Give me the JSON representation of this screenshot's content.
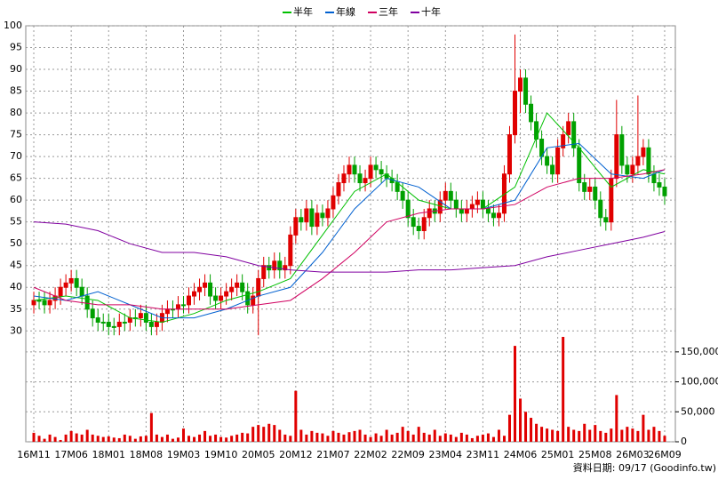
{
  "chart_data": {
    "type": "candlestick",
    "legend_position": "top",
    "grid": true,
    "up_color": "#e00000",
    "down_color": "#00a000",
    "volume_color": "#e00000",
    "xlim": [
      -1.5,
      120
    ],
    "xticks": [
      {
        "value": 0,
        "label": "16M11"
      },
      {
        "value": 7,
        "label": "17M06"
      },
      {
        "value": 14,
        "label": "18M01"
      },
      {
        "value": 21,
        "label": "18M08"
      },
      {
        "value": 28,
        "label": "19M03"
      },
      {
        "value": 35,
        "label": "19M10"
      },
      {
        "value": 42,
        "label": "20M05"
      },
      {
        "value": 49,
        "label": "20M12"
      },
      {
        "value": 56,
        "label": "21M07"
      },
      {
        "value": 63,
        "label": "22M02"
      },
      {
        "value": 70,
        "label": "22M09"
      },
      {
        "value": 77,
        "label": "23M04"
      },
      {
        "value": 84,
        "label": "23M11"
      },
      {
        "value": 91,
        "label": "24M06"
      },
      {
        "value": 98,
        "label": "25M01"
      },
      {
        "value": 105,
        "label": "25M08"
      },
      {
        "value": 112,
        "label": "26M03"
      },
      {
        "value": 118,
        "label": "26M09"
      }
    ],
    "ylim": [
      27,
      100
    ],
    "yticks": [
      30,
      35,
      40,
      45,
      50,
      55,
      60,
      65,
      70,
      75,
      80,
      85,
      90,
      95,
      100
    ],
    "y2lim": [
      0,
      175000
    ],
    "y2ticks": [
      0,
      {
        "value": 50000,
        "label": "50,000"
      },
      {
        "value": 100000,
        "label": "100,000"
      },
      {
        "value": 150000,
        "label": "150,000"
      }
    ],
    "open": [
      36,
      37,
      37,
      36,
      37,
      38,
      40,
      41,
      42,
      40,
      38,
      35,
      33,
      32,
      32,
      31,
      31,
      32,
      32,
      33,
      33,
      34,
      32,
      31,
      32,
      34,
      35,
      35,
      36,
      36,
      38,
      39,
      40,
      41,
      38,
      37,
      38,
      39,
      40,
      41,
      39,
      36,
      38,
      42,
      45,
      44,
      46,
      44,
      45,
      52,
      56,
      55,
      58,
      54,
      57,
      56,
      58,
      61,
      64,
      66,
      68,
      66,
      64,
      65,
      68,
      67,
      66,
      65,
      64,
      62,
      60,
      56,
      54,
      53,
      56,
      58,
      57,
      60,
      62,
      60,
      58,
      57,
      58,
      59,
      60,
      58,
      57,
      56,
      57,
      66,
      75,
      85,
      88,
      82,
      78,
      74,
      70,
      68,
      66,
      72,
      75,
      78,
      72,
      64,
      62,
      63,
      60,
      56,
      55,
      65,
      75,
      68,
      66,
      68,
      70,
      72,
      66,
      64,
      63
    ],
    "high": [
      39,
      39,
      39,
      39,
      40,
      42,
      43,
      44,
      44,
      42,
      40,
      37,
      35,
      34,
      34,
      33,
      34,
      34,
      35,
      35,
      36,
      36,
      34,
      34,
      36,
      37,
      37,
      38,
      38,
      40,
      41,
      42,
      43,
      43,
      40,
      40,
      41,
      42,
      43,
      43,
      41,
      40,
      44,
      47,
      47,
      48,
      48,
      47,
      54,
      58,
      58,
      60,
      60,
      59,
      59,
      60,
      63,
      66,
      68,
      70,
      70,
      68,
      67,
      70,
      70,
      69,
      68,
      67,
      66,
      64,
      62,
      58,
      56,
      58,
      60,
      60,
      62,
      64,
      64,
      62,
      60,
      60,
      61,
      62,
      62,
      60,
      59,
      59,
      68,
      77,
      98,
      90,
      90,
      84,
      80,
      76,
      72,
      70,
      74,
      77,
      80,
      80,
      74,
      66,
      65,
      65,
      62,
      58,
      67,
      83,
      77,
      70,
      70,
      84,
      74,
      74,
      68,
      66,
      65
    ],
    "low": [
      34,
      35,
      34,
      34,
      35,
      36,
      38,
      39,
      38,
      36,
      33,
      31,
      30,
      30,
      29,
      29,
      29,
      30,
      30,
      31,
      31,
      30,
      29,
      29,
      30,
      32,
      33,
      33,
      34,
      34,
      36,
      37,
      38,
      36,
      35,
      35,
      36,
      37,
      38,
      37,
      34,
      34,
      29,
      40,
      42,
      42,
      42,
      42,
      43,
      50,
      53,
      53,
      52,
      52,
      54,
      54,
      56,
      59,
      62,
      64,
      64,
      62,
      62,
      63,
      65,
      64,
      63,
      62,
      60,
      58,
      54,
      52,
      51,
      51,
      54,
      55,
      55,
      58,
      58,
      56,
      55,
      55,
      56,
      57,
      56,
      55,
      54,
      54,
      55,
      64,
      73,
      80,
      80,
      76,
      72,
      68,
      66,
      64,
      64,
      70,
      73,
      70,
      62,
      60,
      60,
      58,
      54,
      53,
      53,
      63,
      66,
      64,
      64,
      66,
      68,
      64,
      62,
      61,
      59
    ],
    "close": [
      37,
      37,
      36,
      37,
      38,
      40,
      41,
      42,
      40,
      38,
      35,
      33,
      32,
      32,
      31,
      31,
      32,
      32,
      33,
      33,
      34,
      32,
      31,
      32,
      34,
      35,
      35,
      36,
      36,
      38,
      39,
      40,
      41,
      38,
      37,
      38,
      39,
      40,
      41,
      39,
      36,
      38,
      42,
      45,
      44,
      46,
      44,
      45,
      52,
      56,
      55,
      58,
      54,
      57,
      56,
      58,
      61,
      64,
      66,
      68,
      66,
      64,
      65,
      68,
      67,
      66,
      65,
      64,
      62,
      60,
      56,
      54,
      53,
      56,
      58,
      57,
      60,
      62,
      60,
      58,
      57,
      58,
      59,
      60,
      58,
      57,
      56,
      57,
      66,
      75,
      85,
      88,
      82,
      78,
      74,
      70,
      68,
      66,
      72,
      75,
      78,
      72,
      64,
      62,
      63,
      60,
      56,
      55,
      65,
      75,
      68,
      66,
      68,
      70,
      72,
      66,
      64,
      63,
      61
    ],
    "volume": [
      15000,
      10000,
      5000,
      12000,
      8000,
      3000,
      12000,
      18000,
      14000,
      12000,
      20000,
      12000,
      10000,
      8000,
      9000,
      7000,
      6000,
      12000,
      10000,
      5000,
      9000,
      10000,
      48000,
      12000,
      8000,
      12000,
      5000,
      7000,
      22000,
      10000,
      8000,
      12000,
      18000,
      10000,
      12000,
      8000,
      7000,
      10000,
      12000,
      15000,
      14000,
      25000,
      28000,
      25000,
      30000,
      28000,
      20000,
      12000,
      10000,
      85000,
      20000,
      12000,
      18000,
      15000,
      14000,
      10000,
      18000,
      15000,
      12000,
      16000,
      18000,
      20000,
      12000,
      8000,
      14000,
      10000,
      20000,
      12000,
      15000,
      25000,
      18000,
      12000,
      25000,
      15000,
      12000,
      20000,
      10000,
      14000,
      12000,
      8000,
      15000,
      12000,
      6000,
      10000,
      12000,
      14000,
      8000,
      20000,
      10000,
      45000,
      160000,
      72000,
      50000,
      40000,
      30000,
      25000,
      22000,
      20000,
      18000,
      175000,
      25000,
      20000,
      18000,
      30000,
      20000,
      28000,
      18000,
      15000,
      22000,
      78000,
      20000,
      25000,
      22000,
      18000,
      45000,
      20000,
      25000,
      18000,
      10000
    ],
    "ma_x": [
      0,
      6,
      12,
      18,
      24,
      30,
      36,
      42,
      48,
      54,
      60,
      66,
      72,
      78,
      84,
      90,
      96,
      102,
      108,
      114,
      118
    ],
    "series": [
      {
        "name": "半年",
        "color": "#00c000",
        "values": [
          37,
          38,
          37,
          33,
          32,
          34,
          37,
          39,
          42,
          52,
          62,
          66,
          60,
          58,
          58,
          63,
          80,
          72,
          63,
          67,
          66
        ]
      },
      {
        "name": "年線",
        "color": "#0060d0",
        "values": [
          38,
          37,
          39,
          36,
          33,
          33,
          35,
          38,
          40,
          48,
          58,
          65,
          63,
          58,
          58,
          60,
          72,
          73,
          66,
          65,
          67
        ]
      },
      {
        "name": "三年",
        "color": "#d00060",
        "values": [
          40,
          37,
          36,
          36,
          35,
          35,
          35,
          36,
          37,
          42,
          48,
          55,
          57,
          58,
          58,
          59,
          63,
          65,
          65,
          66,
          67
        ]
      },
      {
        "name": "十年",
        "color": "#8000a0",
        "values": [
          55,
          54.5,
          53,
          50,
          48,
          48,
          47,
          45,
          44,
          43.5,
          43.5,
          43.5,
          44,
          44,
          44.5,
          45,
          47,
          48.5,
          50,
          51.5,
          52.8
        ]
      }
    ],
    "footnote": "資料日期: 09/17  (Goodinfo.tw)"
  }
}
